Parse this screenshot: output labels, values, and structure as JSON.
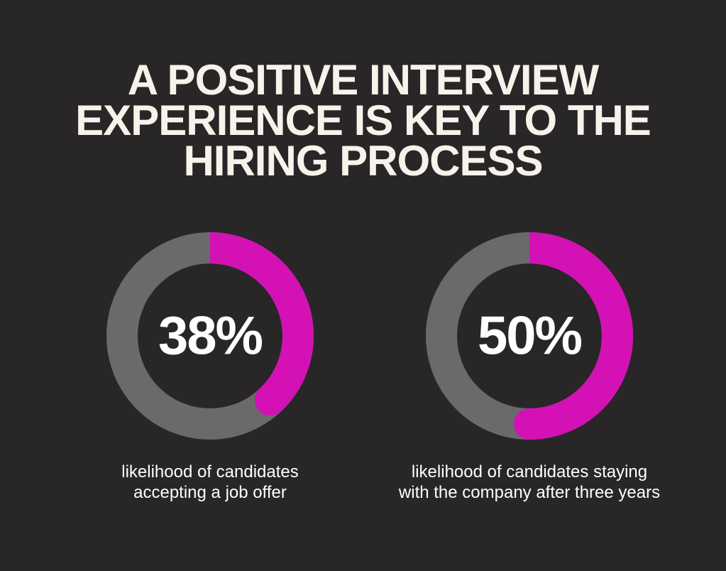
{
  "title": "A POSITIVE INTERVIEW EXPERIENCE IS KEY TO THE HIRING PROCESS",
  "chart_data": [
    {
      "type": "donut",
      "values": [
        38
      ],
      "value_labels": [
        "38%"
      ],
      "caption": "likelihood of candidates accepting a job offer",
      "color": "#d411b5",
      "track_color": "#6a6a6a"
    },
    {
      "type": "donut",
      "values": [
        50
      ],
      "value_labels": [
        "50%"
      ],
      "caption": "likelihood of candidates staying with the company after three years",
      "color": "#d411b5",
      "track_color": "#6a6a6a"
    }
  ]
}
